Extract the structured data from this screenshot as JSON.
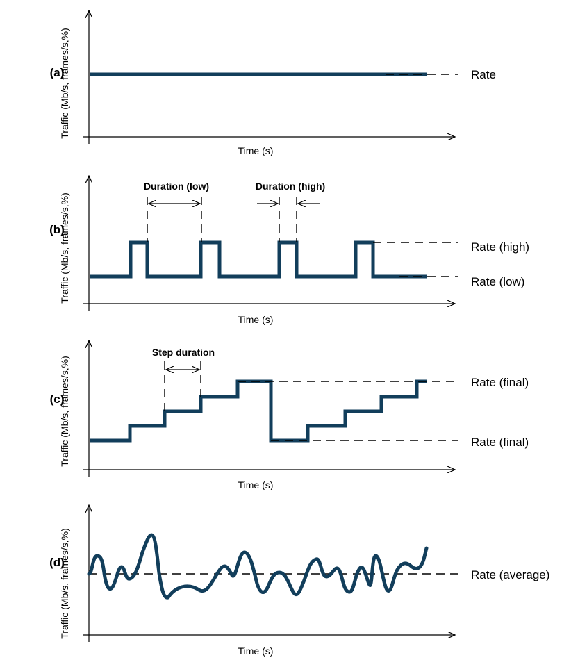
{
  "colors": {
    "trace": "#123e5b",
    "axis": "#000000",
    "background": "#ffffff"
  },
  "panels": [
    {
      "id": "a",
      "label": "(a)",
      "ylabel": "Traffic (Mb/s, frames/s,%)",
      "xlabel": "Time (s)",
      "pattern": "constant",
      "rate_labels": [
        "Rate"
      ]
    },
    {
      "id": "b",
      "label": "(b)",
      "ylabel": "Traffic (Mb/s, frames/s,%)",
      "xlabel": "Time (s)",
      "pattern": "burst",
      "rate_labels": [
        "Rate (high)",
        "Rate (low)"
      ],
      "annotations": [
        "Duration (low)",
        "Duration (high)"
      ]
    },
    {
      "id": "c",
      "label": "(c)",
      "ylabel": "Traffic (Mb/s, frames/s,%)",
      "xlabel": "Time (s)",
      "pattern": "step",
      "rate_labels": [
        "Rate (final)",
        "Rate (final)"
      ],
      "annotations": [
        "Step duration"
      ]
    },
    {
      "id": "d",
      "label": "(d)",
      "ylabel": "Traffic (Mb/s, frames/s,%)",
      "xlabel": "Time (s)",
      "pattern": "random",
      "rate_labels": [
        "Rate (average)"
      ]
    }
  ]
}
